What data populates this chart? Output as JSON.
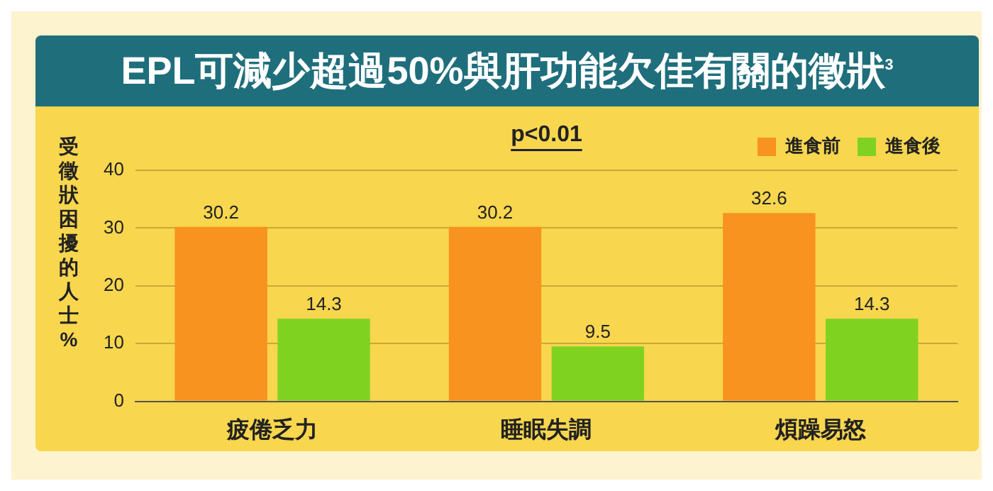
{
  "chart_data": {
    "type": "bar",
    "title": "EPL可減少超過50%與肝功能欠佳有關的徵狀$^{3}$",
    "ylabel": "受徵狀困擾的人士 %",
    "categories": [
      "疲倦乏力",
      "睡眠失調",
      "煩躁易怒"
    ],
    "series": [
      {
        "name": "進食前",
        "color": "#f7931e",
        "values": [
          30.2,
          30.2,
          32.6
        ]
      },
      {
        "name": "進食後",
        "color": "#7fd320",
        "values": [
          14.3,
          9.5,
          14.3
        ]
      }
    ],
    "ylim": [
      0,
      40
    ],
    "yticks": [
      0,
      10,
      20,
      30,
      40
    ],
    "grid": "y",
    "legend": "top right",
    "data_labels": true,
    "annotations": [
      "p<0.01"
    ]
  }
}
